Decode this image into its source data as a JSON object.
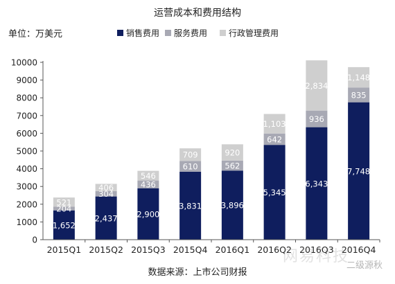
{
  "chart_data": {
    "type": "bar",
    "stacked": true,
    "title": "运营成本和费用结构",
    "unit_label": "单位：万美元",
    "source": "数据来源：上市公司财报",
    "categories": [
      "2015Q1",
      "2015Q2",
      "2015Q3",
      "2015Q4",
      "2016Q1",
      "2016Q2",
      "2016Q3",
      "2016Q4"
    ],
    "series": [
      {
        "name": "销售费用",
        "color": "#0f1e5e",
        "label_color": "#ffffff",
        "values": [
          1652,
          2437,
          2900,
          3831,
          3896,
          5345,
          6343,
          7748
        ],
        "labels": [
          "1,652",
          "2,437",
          "2,900",
          "3,831",
          "3,896",
          "5,345",
          "6,343",
          "7,748"
        ]
      },
      {
        "name": "服务费用",
        "color": "#a8a9b4",
        "label_color": "#ffffff",
        "values": [
          204,
          304,
          436,
          610,
          562,
          642,
          936,
          835
        ],
        "labels": [
          "204",
          "304",
          "436",
          "610",
          "562",
          "642",
          "936",
          "835"
        ]
      },
      {
        "name": "行政管理费用",
        "color": "#cfcfcf",
        "label_color": "#ffffff",
        "values": [
          521,
          406,
          546,
          709,
          920,
          1103,
          2834,
          1148
        ],
        "labels": [
          "521",
          "406",
          "546",
          "709",
          "920",
          "1,103",
          "2,834",
          "1,148"
        ]
      }
    ],
    "yticks": [
      "0",
      "1000",
      "2000",
      "3000",
      "4000",
      "5000",
      "6000",
      "7000",
      "8000",
      "9000",
      "10000"
    ],
    "ylim": [
      0,
      10000
    ],
    "grid": false,
    "legend_position": "top"
  },
  "watermarks": [
    "网易科技",
    "二级源秋"
  ]
}
